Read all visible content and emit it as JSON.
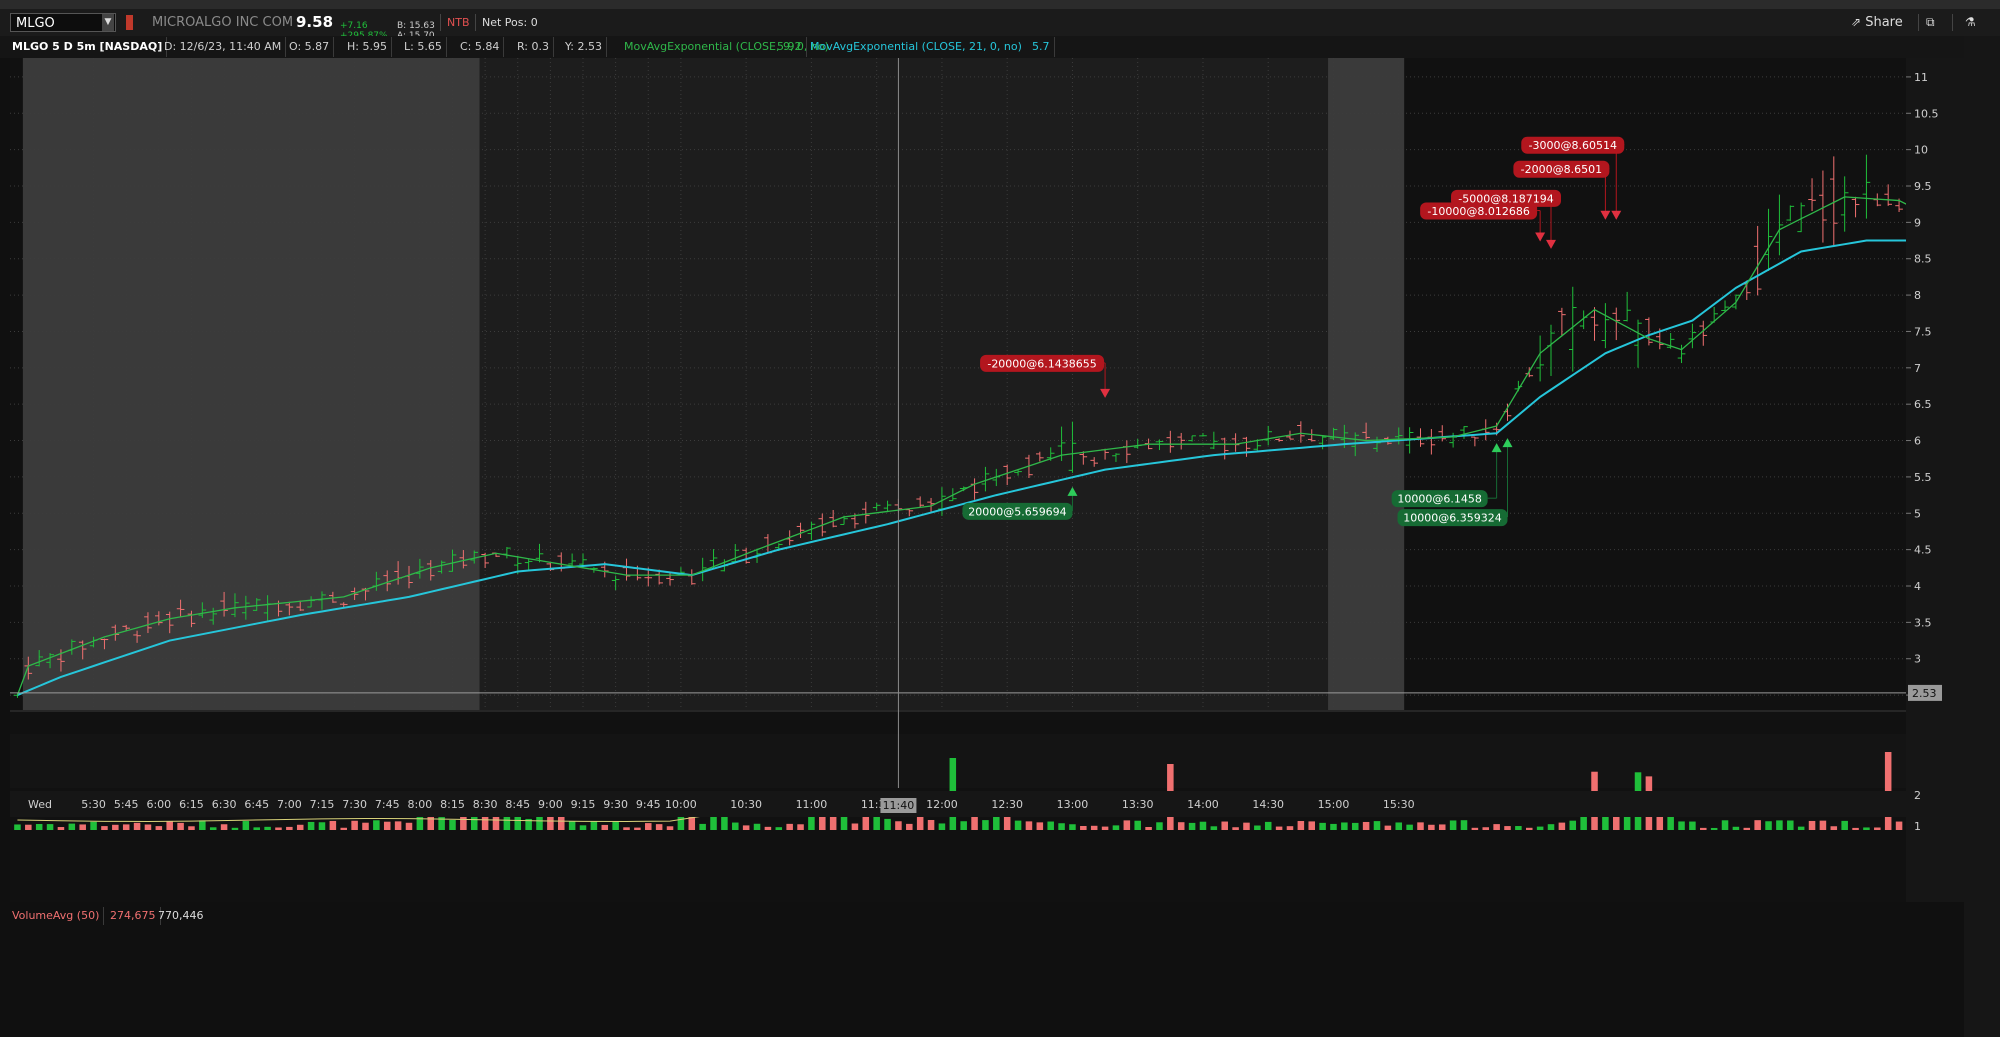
{
  "toolbar": {
    "symbol": "MLGO",
    "company": "MICROALGO INC COM",
    "last": "9.58",
    "change": "+7.16",
    "change_pct": "+295.87%",
    "bid": "B: 15.63",
    "ask": "A: 15.70",
    "ntb": "NTB",
    "net_pos": "Net Pos: 0",
    "share_label": "Share"
  },
  "info": {
    "title": "MLGO 5 D 5m [NASDAQ]",
    "datetime": "D: 12/6/23, 11:40 AM",
    "open": "O: 5.87",
    "high": "H: 5.95",
    "low": "L: 5.65",
    "close": "C: 5.84",
    "range": "R: 0.3",
    "y": "Y: 2.53",
    "ema9_label": "MovAvgExponential (CLOSE, 9, 0, no)",
    "ema9_val": "5.92",
    "ema21_label": "MovAvgExponential (CLOSE, 21, 0, no)",
    "ema21_val": "5.7"
  },
  "volume_info": {
    "label": "VolumeAvg (50)",
    "value1": "274,675",
    "value2": "770,446"
  },
  "colors": {
    "up": "#1fbf3a",
    "down": "#f07070",
    "ema9": "#2fb84a",
    "ema21": "#26c6da",
    "marker_sell": "#b3161e",
    "marker_buy": "#166b34",
    "volavg": "#d8d27a"
  },
  "chart_data": {
    "type": "candlestick",
    "interval": "5m",
    "day_label": "Wed",
    "x_ticks": [
      "Wed",
      "5:30",
      "5:45",
      "6:00",
      "6:15",
      "6:30",
      "6:45",
      "7:00",
      "7:15",
      "7:30",
      "7:45",
      "8:00",
      "8:15",
      "8:30",
      "8:45",
      "9:00",
      "9:15",
      "9:30",
      "9:45",
      "10:00",
      "10:30",
      "11:00",
      "11:30",
      "11:40",
      "12:00",
      "12:30",
      "13:00",
      "13:30",
      "14:00",
      "14:30",
      "15:00",
      "15:30"
    ],
    "y_ticks": [
      2.5,
      3,
      3.5,
      4,
      4.5,
      5,
      5.5,
      6,
      6.5,
      7,
      7.5,
      8,
      8.5,
      9,
      9.5,
      10,
      10.5,
      11
    ],
    "ylim": [
      2.35,
      11.15
    ],
    "volume_ticks": [
      "1",
      "2"
    ],
    "price_line": "2.53",
    "crosshair_time": "11:40",
    "sessions": [
      {
        "start": "5:00",
        "end": "8:30",
        "shade": "premarket"
      },
      {
        "start": "8:30",
        "end": "15:00",
        "shade": "regular"
      },
      {
        "start": "15:00",
        "end": "15:35",
        "shade": "postmarket"
      }
    ],
    "ema9": [
      [
        0,
        2.5
      ],
      [
        1,
        2.9
      ],
      [
        8,
        3.3
      ],
      [
        14,
        3.55
      ],
      [
        20,
        3.7
      ],
      [
        30,
        3.85
      ],
      [
        38,
        4.25
      ],
      [
        44,
        4.45
      ],
      [
        50,
        4.3
      ],
      [
        56,
        4.15
      ],
      [
        62,
        4.15
      ],
      [
        68,
        4.5
      ],
      [
        76,
        4.95
      ],
      [
        84,
        5.1
      ],
      [
        88,
        5.4
      ],
      [
        96,
        5.8
      ],
      [
        104,
        5.95
      ],
      [
        112,
        5.95
      ],
      [
        118,
        6.1
      ],
      [
        124,
        6.0
      ],
      [
        132,
        6.05
      ],
      [
        136,
        6.2
      ],
      [
        140,
        7.2
      ],
      [
        145,
        7.8
      ],
      [
        150,
        7.4
      ],
      [
        153,
        7.25
      ],
      [
        158,
        7.9
      ],
      [
        162,
        8.9
      ],
      [
        168,
        9.35
      ],
      [
        173,
        9.3
      ],
      [
        177,
        9.0
      ]
    ],
    "ema21": [
      [
        0,
        2.5
      ],
      [
        4,
        2.75
      ],
      [
        14,
        3.25
      ],
      [
        26,
        3.6
      ],
      [
        36,
        3.85
      ],
      [
        46,
        4.2
      ],
      [
        54,
        4.3
      ],
      [
        62,
        4.15
      ],
      [
        70,
        4.5
      ],
      [
        80,
        4.85
      ],
      [
        90,
        5.25
      ],
      [
        100,
        5.6
      ],
      [
        110,
        5.8
      ],
      [
        122,
        5.95
      ],
      [
        136,
        6.1
      ],
      [
        140,
        6.6
      ],
      [
        146,
        7.2
      ],
      [
        150,
        7.45
      ],
      [
        154,
        7.65
      ],
      [
        158,
        8.1
      ],
      [
        164,
        8.6
      ],
      [
        170,
        8.75
      ],
      [
        177,
        8.75
      ]
    ],
    "trades": [
      {
        "label": "-20000@6.1438655",
        "side": "sell",
        "bar": 100,
        "price": 6.6
      },
      {
        "label": "20000@5.659694",
        "side": "buy",
        "bar": 97,
        "price": 5.35
      },
      {
        "label": "10000@6.1458",
        "side": "buy",
        "bar": 136,
        "price": 5.95
      },
      {
        "label": "10000@6.359324",
        "side": "buy",
        "bar": 137,
        "price": 6.02
      },
      {
        "label": "-10000@8.012686",
        "side": "sell",
        "bar": 140,
        "price": 8.75
      },
      {
        "label": "-5000@8.187194",
        "side": "sell",
        "bar": 141,
        "price": 8.65
      },
      {
        "label": "-2000@8.6501",
        "side": "sell",
        "bar": 146,
        "price": 9.05
      },
      {
        "label": "-3000@8.60514",
        "side": "sell",
        "bar": 147,
        "price": 9.05
      }
    ]
  }
}
